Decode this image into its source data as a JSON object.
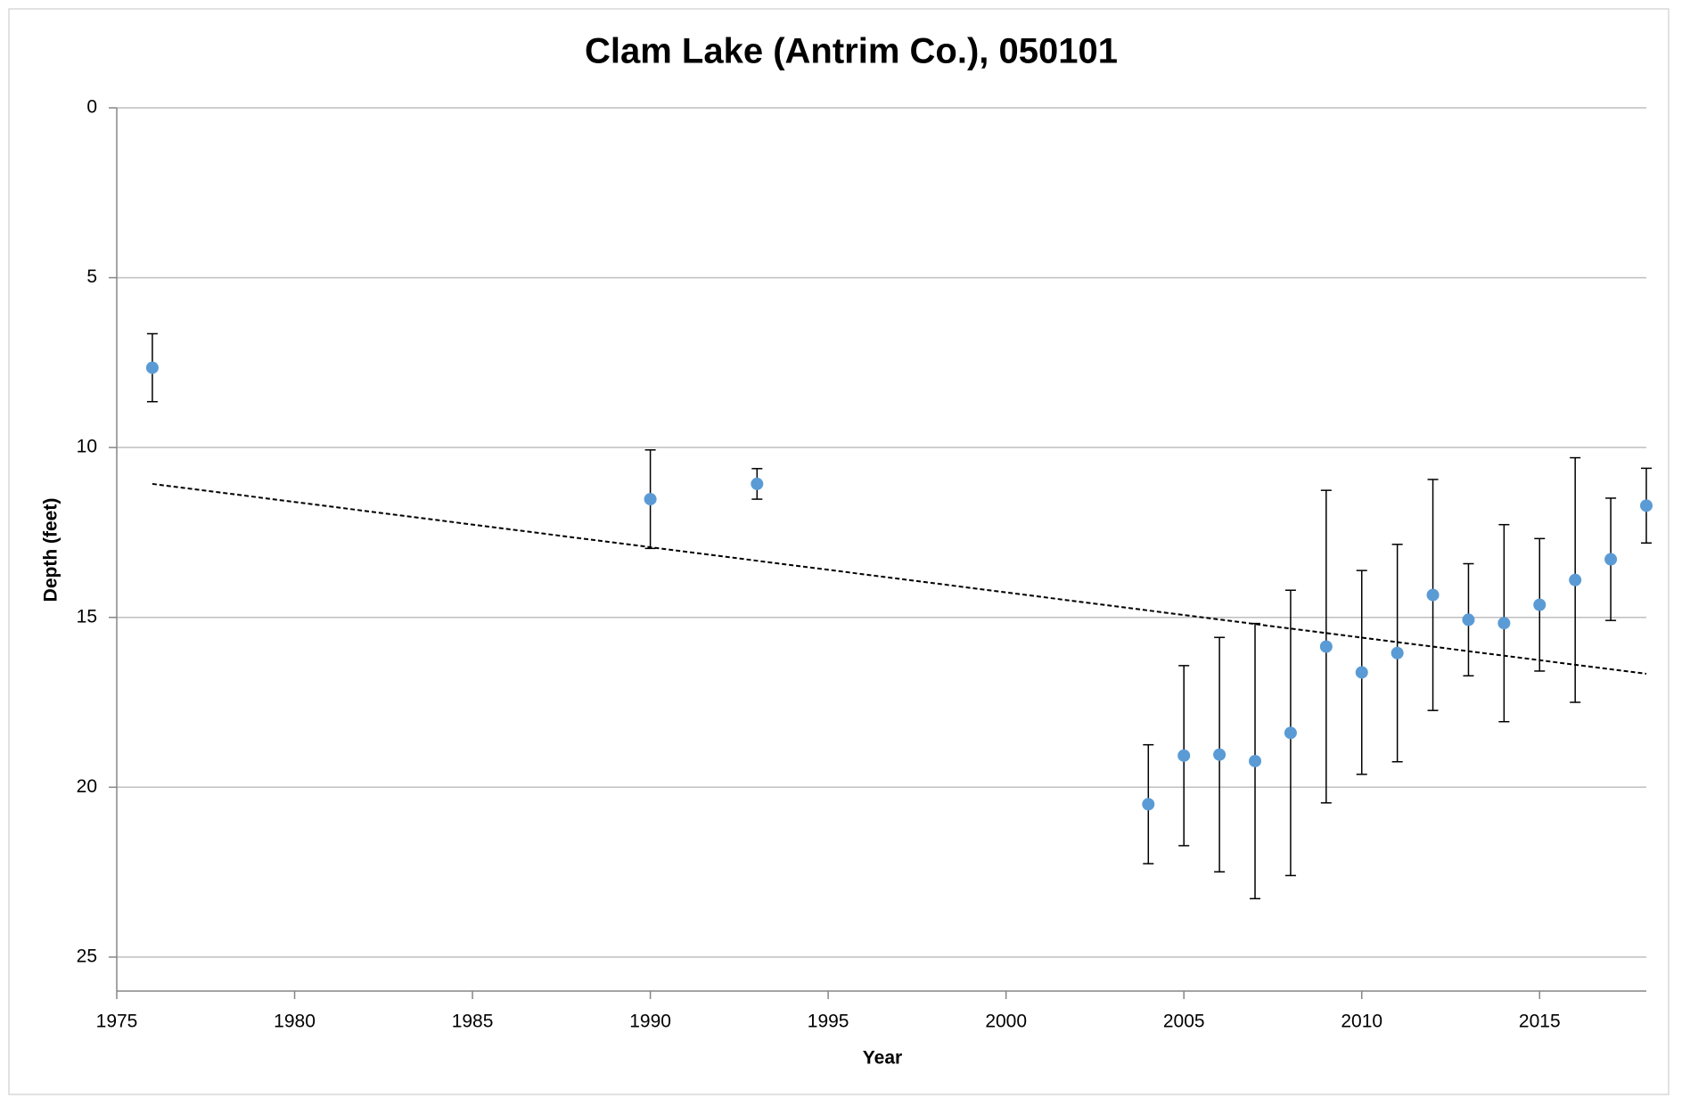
{
  "chart_data": {
    "type": "scatter",
    "title": "Clam Lake (Antrim Co.), 050101",
    "x_label": "Year",
    "y_label": "Depth (feet)",
    "xlim": [
      1975,
      2018
    ],
    "xticks": [
      1975,
      1980,
      1985,
      1990,
      1995,
      2000,
      2005,
      2010,
      2015
    ],
    "ylim": [
      0,
      26
    ],
    "yticks": [
      0,
      5,
      10,
      15,
      20,
      25
    ],
    "y_inverted": true,
    "grid": true,
    "series": [
      {
        "color": "#5b9bd5",
        "x": [
          1976,
          1990,
          1993,
          2004,
          2005,
          2006,
          2007,
          2008,
          2009,
          2010,
          2011,
          2012,
          2013,
          2014,
          2015,
          2016,
          2017,
          2018
        ],
        "values": [
          7.65,
          11.52,
          11.07,
          20.5,
          19.07,
          19.04,
          19.23,
          18.4,
          15.86,
          16.62,
          16.05,
          14.34,
          15.07,
          15.17,
          14.63,
          13.9,
          13.29,
          11.71
        ],
        "errors": [
          1.0,
          1.45,
          0.45,
          1.75,
          2.65,
          3.45,
          4.05,
          4.2,
          4.6,
          3.0,
          3.2,
          3.4,
          1.65,
          2.9,
          1.95,
          3.6,
          1.8,
          1.1
        ]
      }
    ],
    "trendline": {
      "x": [
        1976,
        2018
      ],
      "values": [
        11.07,
        16.66
      ],
      "color": "#000000"
    }
  }
}
